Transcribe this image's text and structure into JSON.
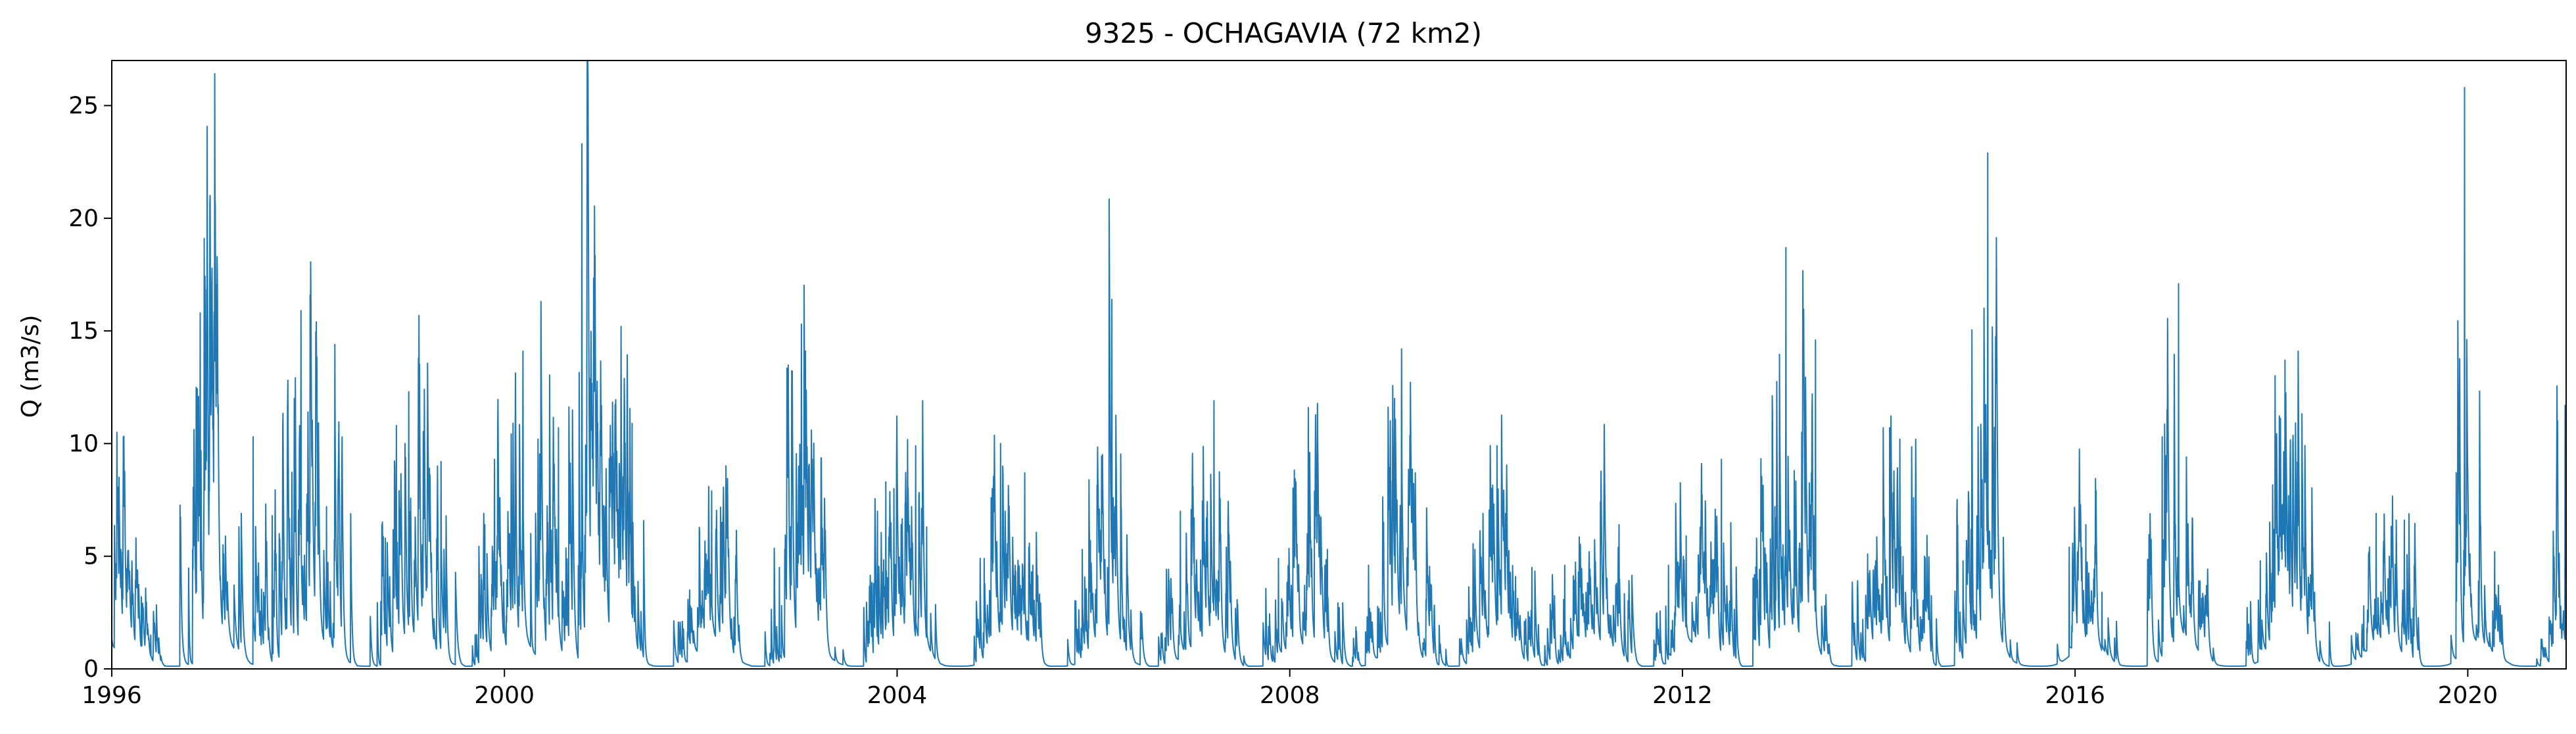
{
  "chart_data": {
    "type": "line",
    "title": "9325 - OCHAGAVIA (72 km2)",
    "xlabel": "",
    "ylabel": "Q (m3/s)",
    "xlim": [
      "1996-01-01",
      "2021-01-01"
    ],
    "ylim": [
      0,
      27
    ],
    "grid": false,
    "legend": "none",
    "x_ticks": [
      "1996",
      "2000",
      "2004",
      "2008",
      "2012",
      "2016",
      "2020"
    ],
    "y_ticks": [
      0,
      5,
      10,
      15,
      20,
      25
    ],
    "series": [
      {
        "color": "#1f77b4",
        "peaks": [
          [
            "1996-01-20",
            10.5
          ],
          [
            "1996-02-10",
            5.2
          ],
          [
            "1996-03-15",
            4.0
          ],
          [
            "1996-04-20",
            3.2
          ],
          [
            "1996-05-25",
            1.5
          ],
          [
            "1996-11-10",
            12.5
          ],
          [
            "1996-11-25",
            15.8
          ],
          [
            "1996-12-10",
            19.1
          ],
          [
            "1996-12-28",
            8.0
          ],
          [
            "1997-01-15",
            14.8
          ],
          [
            "1997-02-20",
            5.1
          ],
          [
            "1997-06-10",
            10.3
          ],
          [
            "1997-08-20",
            6.8
          ],
          [
            "1997-09-15",
            6.0
          ],
          [
            "1997-11-10",
            12.0
          ],
          [
            "1997-12-05",
            15.9
          ],
          [
            "1998-01-15",
            9.0
          ],
          [
            "1998-03-10",
            7.2
          ],
          [
            "1998-04-10",
            14.4
          ],
          [
            "1998-10-15",
            5.8
          ],
          [
            "1998-11-25",
            10.8
          ],
          [
            "1999-01-10",
            12.3
          ],
          [
            "1999-02-15",
            13.8
          ],
          [
            "1999-03-20",
            7.3
          ],
          [
            "1999-05-10",
            9.2
          ],
          [
            "1999-10-20",
            6.4
          ],
          [
            "1999-11-25",
            9.3
          ],
          [
            "2000-01-20",
            6.0
          ],
          [
            "2000-03-10",
            14.1
          ],
          [
            "2000-05-05",
            10.2
          ],
          [
            "2000-06-10",
            6.5
          ],
          [
            "2000-07-20",
            10.7
          ],
          [
            "2000-10-15",
            23.3
          ],
          [
            "2000-11-20",
            10.6
          ],
          [
            "2000-12-10",
            11.8
          ],
          [
            "2001-01-10",
            7.2
          ],
          [
            "2001-02-15",
            10.4
          ],
          [
            "2001-03-10",
            15.2
          ],
          [
            "2001-04-20",
            10.9
          ],
          [
            "2001-11-20",
            3.5
          ],
          [
            "2002-01-15",
            4.3
          ],
          [
            "2002-02-10",
            7.9
          ],
          [
            "2002-03-20",
            6.5
          ],
          [
            "2002-05-10",
            3.8
          ],
          [
            "2002-10-20",
            4.5
          ],
          [
            "2002-11-20",
            9.6
          ],
          [
            "2003-01-10",
            15.3
          ],
          [
            "2003-01-25",
            14.1
          ],
          [
            "2003-02-15",
            7.0
          ],
          [
            "2003-10-20",
            7.0
          ],
          [
            "2003-11-20",
            8.3
          ],
          [
            "2003-12-20",
            8.0
          ],
          [
            "2004-02-10",
            7.0
          ],
          [
            "2004-03-10",
            9.9
          ],
          [
            "2004-04-20",
            6.3
          ],
          [
            "2004-11-20",
            4.9
          ],
          [
            "2004-12-20",
            8.0
          ],
          [
            "2005-01-20",
            10.0
          ],
          [
            "2005-03-15",
            4.6
          ],
          [
            "2005-04-20",
            8.7
          ],
          [
            "2005-05-20",
            4.6
          ],
          [
            "2005-11-20",
            5.3
          ],
          [
            "2005-12-20",
            5.7
          ],
          [
            "2006-01-25",
            4.8
          ],
          [
            "2006-03-10",
            16.4
          ],
          [
            "2006-05-10",
            3.0
          ],
          [
            "2006-10-20",
            2.8
          ],
          [
            "2006-11-20",
            7.0
          ],
          [
            "2007-01-10",
            6.7
          ],
          [
            "2007-02-25",
            6.7
          ],
          [
            "2007-03-25",
            11.9
          ],
          [
            "2007-05-10",
            5.4
          ],
          [
            "2007-11-20",
            4.9
          ],
          [
            "2008-01-20",
            5.0
          ],
          [
            "2008-03-10",
            11.6
          ],
          [
            "2008-04-10",
            8.9
          ],
          [
            "2008-05-20",
            5.3
          ],
          [
            "2008-10-20",
            4.6
          ],
          [
            "2008-12-15",
            6.5
          ],
          [
            "2009-01-25",
            12.0
          ],
          [
            "2009-02-20",
            14.2
          ],
          [
            "2009-04-10",
            5.6
          ],
          [
            "2009-06-10",
            3.2
          ],
          [
            "2009-11-20",
            5.3
          ],
          [
            "2009-12-20",
            6.9
          ],
          [
            "2010-02-10",
            9.9
          ],
          [
            "2010-04-20",
            4.1
          ],
          [
            "2010-06-20",
            4.5
          ],
          [
            "2010-10-20",
            4.6
          ],
          [
            "2010-12-10",
            4.3
          ],
          [
            "2011-01-20",
            4.0
          ],
          [
            "2011-03-15",
            7.9
          ],
          [
            "2011-05-10",
            6.4
          ],
          [
            "2011-11-10",
            4.6
          ],
          [
            "2012-01-15",
            5.9
          ],
          [
            "2012-03-20",
            4.3
          ],
          [
            "2012-04-20",
            3.5
          ],
          [
            "2012-05-25",
            9.3
          ],
          [
            "2012-10-20",
            7.3
          ],
          [
            "2012-12-10",
            7.2
          ],
          [
            "2013-01-20",
            18.7
          ],
          [
            "2013-02-20",
            8.8
          ],
          [
            "2013-03-20",
            10.5
          ],
          [
            "2013-05-10",
            14.6
          ],
          [
            "2013-11-20",
            5.1
          ],
          [
            "2013-12-20",
            4.8
          ],
          [
            "2014-02-10",
            10.7
          ],
          [
            "2014-03-20",
            10.2
          ],
          [
            "2014-05-10",
            7.6
          ],
          [
            "2014-06-20",
            5.0
          ],
          [
            "2014-11-10",
            4.8
          ],
          [
            "2014-12-10",
            6.2
          ],
          [
            "2015-01-20",
            8.4
          ],
          [
            "2015-02-10",
            22.9
          ],
          [
            "2015-03-10",
            4.9
          ],
          [
            "2015-12-10",
            5.4
          ],
          [
            "2016-02-10",
            6.4
          ],
          [
            "2016-03-10",
            4.0
          ],
          [
            "2016-04-10",
            3.4
          ],
          [
            "2016-11-20",
            10.3
          ],
          [
            "2017-01-20",
            17.1
          ],
          [
            "2017-02-20",
            4.1
          ],
          [
            "2017-04-10",
            3.9
          ],
          [
            "2017-11-20",
            4.8
          ],
          [
            "2018-01-10",
            6.2
          ],
          [
            "2018-02-20",
            13.7
          ],
          [
            "2018-03-10",
            4.0
          ],
          [
            "2018-04-10",
            14.1
          ],
          [
            "2018-06-10",
            3.4
          ],
          [
            "2018-12-10",
            2.8
          ],
          [
            "2019-01-25",
            6.9
          ],
          [
            "2019-03-10",
            4.0
          ],
          [
            "2019-04-10",
            6.6
          ],
          [
            "2019-05-10",
            6.6
          ],
          [
            "2019-11-20",
            3.0
          ],
          [
            "2019-12-20",
            25.8
          ],
          [
            "2020-02-10",
            3.9
          ],
          [
            "2020-04-10",
            5.2
          ],
          [
            "2020-11-10",
            2.0
          ],
          [
            "2020-12-10",
            1.8
          ],
          [
            "2020-12-28",
            11.7
          ]
        ]
      }
    ]
  }
}
